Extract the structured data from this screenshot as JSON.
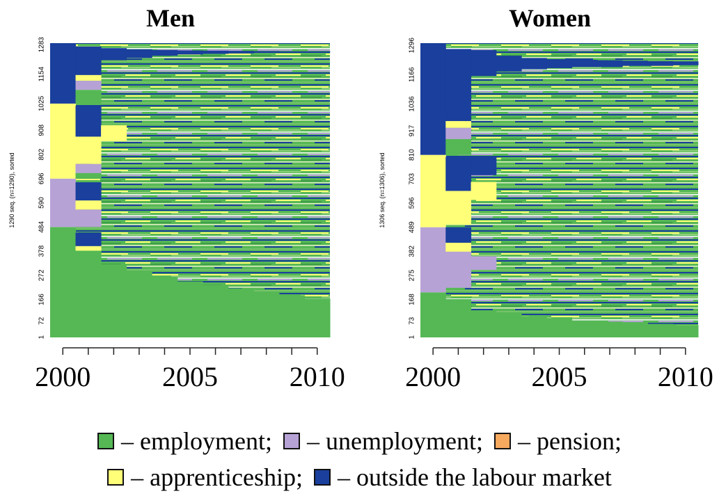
{
  "chart_data": [
    {
      "type": "sequence_index",
      "title": "Men",
      "ylabel": "1290 seq. (n=1290), sorted",
      "xlim": [
        1999.5,
        2010.5
      ],
      "ylim": [
        0,
        1290
      ],
      "xticks": [
        2000,
        2005,
        2010
      ],
      "xminor_ticks": [
        2001,
        2002,
        2003,
        2004,
        2006,
        2007,
        2008,
        2009
      ],
      "yticks": [
        1,
        72,
        166,
        272,
        378,
        484,
        590,
        696,
        802,
        908,
        1025,
        1154,
        1283
      ],
      "mixed": [
        {
          "x": [
            2000.5,
            2010.5
          ],
          "y": [
            0,
            1290
          ]
        }
      ],
      "blocks": [
        {
          "state": 0,
          "x": [
            1999.5,
            2000.5
          ],
          "y": [
            0,
            484
          ]
        },
        {
          "state": 1,
          "x": [
            1999.5,
            2000.5
          ],
          "y": [
            484,
            696
          ]
        },
        {
          "state": 3,
          "x": [
            1999.5,
            2000.5
          ],
          "y": [
            696,
            1025
          ]
        },
        {
          "state": 4,
          "x": [
            1999.5,
            2000.5
          ],
          "y": [
            1025,
            1290
          ]
        },
        {
          "state": 0,
          "x": [
            2000.5,
            2001.5
          ],
          "y": [
            0,
            380
          ]
        },
        {
          "state": 0,
          "x": [
            2001.5,
            2002.5
          ],
          "y": [
            0,
            320
          ]
        },
        {
          "state": 0,
          "x": [
            2002.5,
            2003.5
          ],
          "y": [
            0,
            290
          ]
        },
        {
          "state": 0,
          "x": [
            2003.5,
            2004.5
          ],
          "y": [
            0,
            265
          ]
        },
        {
          "state": 0,
          "x": [
            2004.5,
            2005.5
          ],
          "y": [
            0,
            245
          ]
        },
        {
          "state": 0,
          "x": [
            2005.5,
            2006.5
          ],
          "y": [
            0,
            230
          ]
        },
        {
          "state": 0,
          "x": [
            2006.5,
            2007.5
          ],
          "y": [
            0,
            215
          ]
        },
        {
          "state": 0,
          "x": [
            2007.5,
            2008.5
          ],
          "y": [
            0,
            200
          ]
        },
        {
          "state": 0,
          "x": [
            2008.5,
            2009.5
          ],
          "y": [
            0,
            185
          ]
        },
        {
          "state": 0,
          "x": [
            2009.5,
            2010.5
          ],
          "y": [
            0,
            170
          ]
        },
        {
          "state": 4,
          "x": [
            2000.5,
            2001.5
          ],
          "y": [
            1150,
            1275
          ]
        },
        {
          "state": 3,
          "x": [
            2000.5,
            2001.5
          ],
          "y": [
            1125,
            1150
          ]
        },
        {
          "state": 1,
          "x": [
            2000.5,
            2001.5
          ],
          "y": [
            1085,
            1125
          ]
        },
        {
          "state": 0,
          "x": [
            2000.5,
            2001.5
          ],
          "y": [
            1025,
            1085
          ]
        },
        {
          "state": 4,
          "x": [
            2000.5,
            2001.5
          ],
          "y": [
            880,
            1015
          ]
        },
        {
          "state": 3,
          "x": [
            2000.5,
            2001.5
          ],
          "y": [
            760,
            880
          ]
        },
        {
          "state": 1,
          "x": [
            2000.5,
            2001.5
          ],
          "y": [
            720,
            760
          ]
        },
        {
          "state": 0,
          "x": [
            2000.5,
            2001.5
          ],
          "y": [
            696,
            720
          ]
        },
        {
          "state": 4,
          "x": [
            2000.5,
            2001.5
          ],
          "y": [
            600,
            680
          ]
        },
        {
          "state": 3,
          "x": [
            2000.5,
            2001.5
          ],
          "y": [
            560,
            600
          ]
        },
        {
          "state": 1,
          "x": [
            2000.5,
            2001.5
          ],
          "y": [
            484,
            560
          ]
        },
        {
          "state": 4,
          "x": [
            2000.5,
            2001.5
          ],
          "y": [
            400,
            460
          ]
        },
        {
          "state": 3,
          "x": [
            2000.5,
            2001.5
          ],
          "y": [
            380,
            400
          ]
        },
        {
          "state": 3,
          "x": [
            2001.5,
            2002.5
          ],
          "y": [
            860,
            930
          ]
        },
        {
          "state": 4,
          "x": [
            2001.5,
            2002.5
          ],
          "y": [
            1215,
            1268
          ]
        },
        {
          "state": 4,
          "x": [
            2002.5,
            2003.5
          ],
          "y": [
            1225,
            1263
          ]
        },
        {
          "state": 4,
          "x": [
            2003.5,
            2004.5
          ],
          "y": [
            1235,
            1260
          ]
        },
        {
          "state": 4,
          "x": [
            2004.5,
            2005.5
          ],
          "y": [
            1240,
            1258
          ]
        },
        {
          "state": 4,
          "x": [
            2005.5,
            2006.5
          ],
          "y": [
            1243,
            1257
          ]
        },
        {
          "state": 4,
          "x": [
            2006.5,
            2007.5
          ],
          "y": [
            1245,
            1256
          ]
        },
        {
          "state": 4,
          "x": [
            2007.5,
            2008.5
          ],
          "y": [
            1247,
            1255
          ]
        },
        {
          "state": 4,
          "x": [
            2008.5,
            2009.5
          ],
          "y": [
            1248,
            1254
          ]
        },
        {
          "state": 4,
          "x": [
            2009.5,
            2010.5
          ],
          "y": [
            1250,
            1254
          ]
        }
      ]
    },
    {
      "type": "sequence_index",
      "title": "Women",
      "ylabel": "1306 seq. (n=1306), sorted",
      "xlim": [
        1999.5,
        2010.5
      ],
      "ylim": [
        0,
        1306
      ],
      "xticks": [
        2000,
        2005,
        2010
      ],
      "xminor_ticks": [
        2001,
        2002,
        2003,
        2004,
        2006,
        2007,
        2008,
        2009
      ],
      "yticks": [
        1,
        73,
        168,
        275,
        382,
        489,
        596,
        703,
        810,
        917,
        1036,
        1166,
        1296
      ],
      "mixed": [
        {
          "x": [
            2000.5,
            2010.5
          ],
          "y": [
            0,
            1306
          ]
        }
      ],
      "blocks": [
        {
          "state": 0,
          "x": [
            1999.5,
            2000.5
          ],
          "y": [
            0,
            200
          ]
        },
        {
          "state": 1,
          "x": [
            1999.5,
            2000.5
          ],
          "y": [
            200,
            489
          ]
        },
        {
          "state": 3,
          "x": [
            1999.5,
            2000.5
          ],
          "y": [
            489,
            810
          ]
        },
        {
          "state": 4,
          "x": [
            1999.5,
            2000.5
          ],
          "y": [
            810,
            1306
          ]
        },
        {
          "state": 0,
          "x": [
            2000.5,
            2001.5
          ],
          "y": [
            0,
            170
          ]
        },
        {
          "state": 0,
          "x": [
            2001.5,
            2002.5
          ],
          "y": [
            0,
            120
          ]
        },
        {
          "state": 0,
          "x": [
            2002.5,
            2003.5
          ],
          "y": [
            0,
            105
          ]
        },
        {
          "state": 0,
          "x": [
            2003.5,
            2004.5
          ],
          "y": [
            0,
            95
          ]
        },
        {
          "state": 0,
          "x": [
            2004.5,
            2005.5
          ],
          "y": [
            0,
            85
          ]
        },
        {
          "state": 0,
          "x": [
            2005.5,
            2006.5
          ],
          "y": [
            0,
            75
          ]
        },
        {
          "state": 0,
          "x": [
            2006.5,
            2007.5
          ],
          "y": [
            0,
            70
          ]
        },
        {
          "state": 0,
          "x": [
            2007.5,
            2008.5
          ],
          "y": [
            0,
            65
          ]
        },
        {
          "state": 0,
          "x": [
            2008.5,
            2009.5
          ],
          "y": [
            0,
            60
          ]
        },
        {
          "state": 0,
          "x": [
            2009.5,
            2010.5
          ],
          "y": [
            0,
            55
          ]
        },
        {
          "state": 4,
          "x": [
            2000.5,
            2001.5
          ],
          "y": [
            960,
            1280
          ]
        },
        {
          "state": 3,
          "x": [
            2000.5,
            2001.5
          ],
          "y": [
            930,
            960
          ]
        },
        {
          "state": 1,
          "x": [
            2000.5,
            2001.5
          ],
          "y": [
            880,
            930
          ]
        },
        {
          "state": 0,
          "x": [
            2000.5,
            2001.5
          ],
          "y": [
            810,
            880
          ]
        },
        {
          "state": 4,
          "x": [
            2000.5,
            2001.5
          ],
          "y": [
            650,
            800
          ]
        },
        {
          "state": 3,
          "x": [
            2000.5,
            2001.5
          ],
          "y": [
            500,
            650
          ]
        },
        {
          "state": 4,
          "x": [
            2000.5,
            2001.5
          ],
          "y": [
            420,
            489
          ]
        },
        {
          "state": 3,
          "x": [
            2000.5,
            2001.5
          ],
          "y": [
            380,
            420
          ]
        },
        {
          "state": 1,
          "x": [
            2000.5,
            2001.5
          ],
          "y": [
            220,
            380
          ]
        },
        {
          "state": 4,
          "x": [
            2001.5,
            2002.5
          ],
          "y": [
            1160,
            1275
          ]
        },
        {
          "state": 4,
          "x": [
            2001.5,
            2002.5
          ],
          "y": [
            720,
            800
          ]
        },
        {
          "state": 3,
          "x": [
            2001.5,
            2002.5
          ],
          "y": [
            610,
            690
          ]
        },
        {
          "state": 1,
          "x": [
            2001.5,
            2002.5
          ],
          "y": [
            300,
            360
          ]
        },
        {
          "state": 4,
          "x": [
            2002.5,
            2003.5
          ],
          "y": [
            1180,
            1250
          ]
        },
        {
          "state": 4,
          "x": [
            2003.5,
            2004.5
          ],
          "y": [
            1190,
            1240
          ]
        },
        {
          "state": 4,
          "x": [
            2004.5,
            2005.5
          ],
          "y": [
            1195,
            1235
          ]
        },
        {
          "state": 4,
          "x": [
            2005.5,
            2006.5
          ],
          "y": [
            1200,
            1232
          ]
        },
        {
          "state": 4,
          "x": [
            2006.5,
            2007.5
          ],
          "y": [
            1200,
            1230
          ]
        },
        {
          "state": 4,
          "x": [
            2007.5,
            2008.5
          ],
          "y": [
            1205,
            1228
          ]
        },
        {
          "state": 4,
          "x": [
            2008.5,
            2009.5
          ],
          "y": [
            1205,
            1226
          ]
        },
        {
          "state": 4,
          "x": [
            2009.5,
            2010.5
          ],
          "y": [
            1208,
            1225
          ]
        }
      ]
    }
  ],
  "legend": {
    "entries": [
      {
        "label": "– employment;",
        "color": "#55b855"
      },
      {
        "label": "– unemployment;",
        "color": "#b7a2d6"
      },
      {
        "label": "– pension;",
        "color": "#f7a95e"
      },
      {
        "label": "– apprenticeship;",
        "color": "#ffff78"
      },
      {
        "label": "– outside the labour market",
        "color": "#1a3f9c"
      }
    ]
  }
}
